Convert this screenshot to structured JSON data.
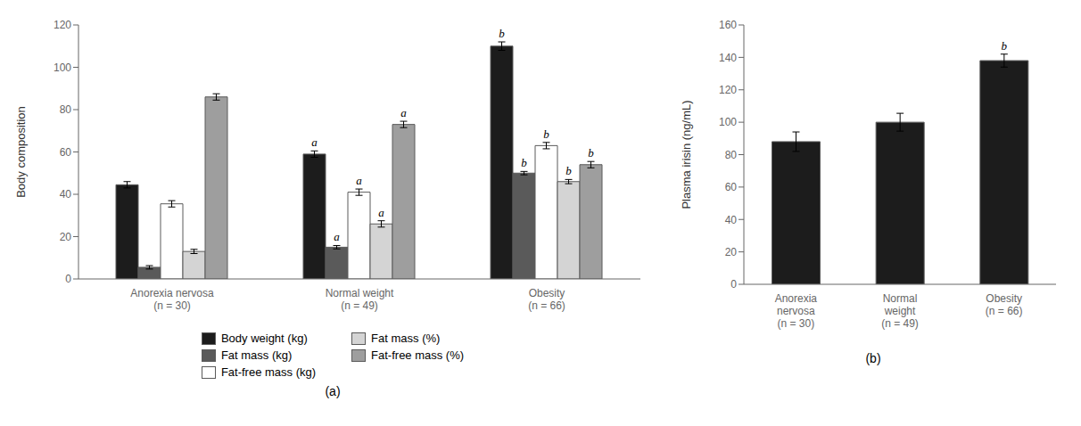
{
  "chart_data": [
    {
      "type": "bar",
      "title": "(a)",
      "ylabel": "Body composition",
      "categories": [
        "Anorexia nervosa\n(n = 30)",
        "Normal weight\n(n = 49)",
        "Obesity\n(n = 66)"
      ],
      "series": [
        {
          "name": "Body weight (kg)",
          "color": "#1c1c1c",
          "values": [
            44.5,
            59.0,
            110.0
          ],
          "errors": [
            1.5,
            1.5,
            2.0
          ]
        },
        {
          "name": "Fat mass (kg)",
          "color": "#5a5a5a",
          "values": [
            5.5,
            15.0,
            50.0
          ],
          "errors": [
            0.8,
            0.8,
            0.8
          ]
        },
        {
          "name": "Fat-free mass (kg)",
          "color": "#ffffff",
          "values": [
            35.5,
            41.0,
            63.0
          ],
          "errors": [
            1.5,
            1.5,
            1.5
          ]
        },
        {
          "name": "Fat mass (%)",
          "color": "#d4d4d4",
          "values": [
            13.0,
            26.0,
            46.0
          ],
          "errors": [
            1.0,
            1.5,
            1.0
          ]
        },
        {
          "name": "Fat-free mass (%)",
          "color": "#9e9e9e",
          "values": [
            86.0,
            73.0,
            54.0
          ],
          "errors": [
            1.5,
            1.5,
            1.5
          ]
        }
      ],
      "ylim": [
        0,
        120
      ],
      "yticks": [
        0,
        20,
        40,
        60,
        80,
        100,
        120
      ],
      "grid": false,
      "legend": "bottom",
      "annotations": [
        {
          "category": "Normal weight\n(n = 49)",
          "series": "Body weight (kg)",
          "text": "a"
        },
        {
          "category": "Normal weight\n(n = 49)",
          "series": "Fat mass (kg)",
          "text": "a"
        },
        {
          "category": "Normal weight\n(n = 49)",
          "series": "Fat-free mass (kg)",
          "text": "a"
        },
        {
          "category": "Normal weight\n(n = 49)",
          "series": "Fat mass (%)",
          "text": "a"
        },
        {
          "category": "Normal weight\n(n = 49)",
          "series": "Fat-free mass (%)",
          "text": "a"
        },
        {
          "category": "Obesity\n(n = 66)",
          "series": "Body weight (kg)",
          "text": "b"
        },
        {
          "category": "Obesity\n(n = 66)",
          "series": "Fat mass (kg)",
          "text": "b"
        },
        {
          "category": "Obesity\n(n = 66)",
          "series": "Fat-free mass (kg)",
          "text": "b"
        },
        {
          "category": "Obesity\n(n = 66)",
          "series": "Fat mass (%)",
          "text": "b"
        },
        {
          "category": "Obesity\n(n = 66)",
          "series": "Fat-free mass (%)",
          "text": "b"
        }
      ]
    },
    {
      "type": "bar",
      "title": "(b)",
      "ylabel": "Plasma irisin (ng/mL)",
      "categories": [
        "Anorexia\nnervosa\n(n = 30)",
        "Normal\nweight\n(n = 49)",
        "Obesity\n(n = 66)"
      ],
      "values": [
        88.0,
        100.0,
        138.0
      ],
      "errors": [
        6.0,
        5.5,
        4.0
      ],
      "color": "#1c1c1c",
      "ylim": [
        0,
        160
      ],
      "yticks": [
        0,
        20,
        40,
        60,
        80,
        100,
        120,
        140,
        160
      ],
      "grid": false,
      "annotations": [
        {
          "category": "Obesity\n(n = 66)",
          "text": "b"
        }
      ]
    }
  ]
}
